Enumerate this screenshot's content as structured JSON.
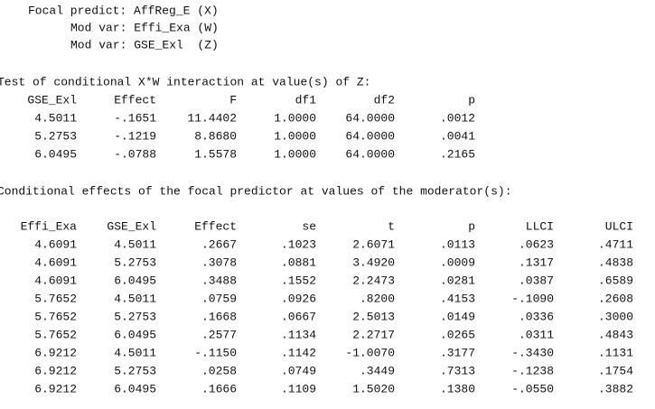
{
  "header": {
    "lines": [
      "Focal predict: AffReg_E (X)",
      "Mod var: Effi_Exa (W)",
      "Mod var: GSE_Exl  (Z)"
    ]
  },
  "test": {
    "title": "Test of conditional X*W interaction at value(s) of Z:",
    "columns": [
      "GSE_Exl",
      "Effect",
      "F",
      "df1",
      "df2",
      "p"
    ],
    "rows": [
      [
        "4.5011",
        "-.1651",
        "11.4402",
        "1.0000",
        "64.0000",
        ".0012"
      ],
      [
        "5.2753",
        "-.1219",
        "8.8680",
        "1.0000",
        "64.0000",
        ".0041"
      ],
      [
        "6.0495",
        "-.0788",
        "1.5578",
        "1.0000",
        "64.0000",
        ".2165"
      ]
    ]
  },
  "effects": {
    "title": "Conditional effects of the focal predictor at values of the moderator(s):",
    "columns": [
      "Effi_Exa",
      "GSE_Exl",
      "Effect",
      "se",
      "t",
      "p",
      "LLCI",
      "ULCI"
    ],
    "rows": [
      [
        "4.6091",
        "4.5011",
        ".2667",
        ".1023",
        "2.6071",
        ".0113",
        ".0623",
        ".4711"
      ],
      [
        "4.6091",
        "5.2753",
        ".3078",
        ".0881",
        "3.4920",
        ".0009",
        ".1317",
        ".4838"
      ],
      [
        "4.6091",
        "6.0495",
        ".3488",
        ".1552",
        "2.2473",
        ".0281",
        ".0387",
        ".6589"
      ],
      [
        "5.7652",
        "4.5011",
        ".0759",
        ".0926",
        ".8200",
        ".4153",
        "-.1090",
        ".2608"
      ],
      [
        "5.7652",
        "5.2753",
        ".1668",
        ".0667",
        "2.5013",
        ".0149",
        ".0336",
        ".3000"
      ],
      [
        "5.7652",
        "6.0495",
        ".2577",
        ".1134",
        "2.2717",
        ".0265",
        ".0311",
        ".4843"
      ],
      [
        "6.9212",
        "4.5011",
        "-.1150",
        ".1142",
        "-1.0070",
        ".3177",
        "-.3430",
        ".1131"
      ],
      [
        "6.9212",
        "5.2753",
        ".0258",
        ".0749",
        ".3449",
        ".7313",
        "-.1238",
        ".1754"
      ],
      [
        "6.9212",
        "6.0495",
        ".1666",
        ".1109",
        "1.5020",
        ".1380",
        "-.0550",
        ".3882"
      ]
    ]
  }
}
